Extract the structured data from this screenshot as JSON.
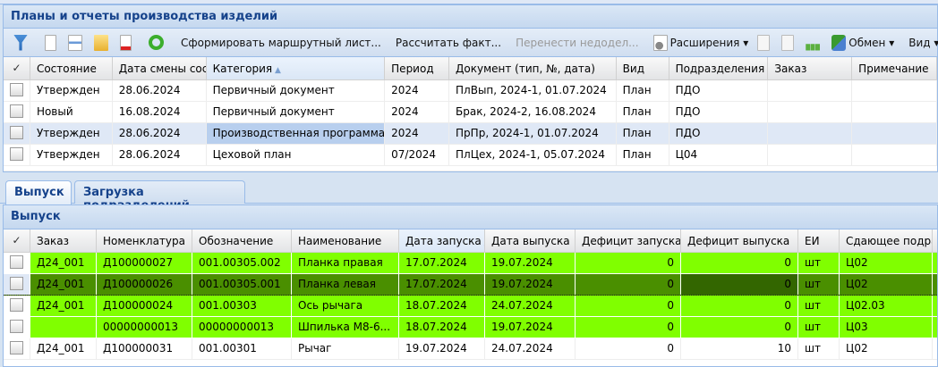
{
  "plans_panel": {
    "title": "Планы и отчеты производства изделий",
    "toolbar": {
      "icons": [
        "filter-icon",
        "new-document-icon",
        "edit-document-icon",
        "open-folder-icon",
        "delete-document-icon",
        "refresh-icon"
      ],
      "route_sheet": "Сформировать маршрутный лист...",
      "calc_fact": "Рассчитать факт...",
      "move_unfinished": "Перенести недодел...",
      "extensions": "Расширения",
      "exchange": "Обмен",
      "view": "Вид"
    },
    "columns": [
      "Состояние",
      "Дата смены состояния",
      "Категория",
      "Период",
      "Документ (тип, №, дата)",
      "Вид",
      "Подразделения",
      "Заказ",
      "Примечание"
    ],
    "rows": [
      [
        "Утвержден",
        "28.06.2024",
        "Первичный документ",
        "2024",
        "ПлВып, 2024-1, 01.07.2024",
        "План",
        "ПДО",
        "",
        ""
      ],
      [
        "Новый",
        "16.08.2024",
        "Первичный документ",
        "2024",
        "Брак, 2024-2, 16.08.2024",
        "План",
        "ПДО",
        "",
        ""
      ],
      [
        "Утвержден",
        "28.06.2024",
        "Производственная программа",
        "2024",
        "ПрПр, 2024-1, 01.07.2024",
        "План",
        "ПДО",
        "",
        ""
      ],
      [
        "Утвержден",
        "28.06.2024",
        "Цеховой план",
        "07/2024",
        "ПлЦех, 2024-1, 05.07.2024",
        "План",
        "Ц04",
        "",
        ""
      ]
    ]
  },
  "tabs": [
    "Выпуск",
    "Загрузка подразделений"
  ],
  "output_panel": {
    "title": "Выпуск",
    "columns": [
      "Заказ",
      "Номенклатура",
      "Обозначение",
      "Наименование",
      "Дата запуска",
      "Дата выпуска",
      "Дефицит запуска",
      "Дефицит выпуска",
      "ЕИ",
      "Сдающее подразделение"
    ],
    "rows": [
      [
        "Д24_001",
        "Д100000027",
        "001.00305.002",
        "Планка правая",
        "17.07.2024",
        "19.07.2024",
        "0",
        "0",
        "шт",
        "Ц02"
      ],
      [
        "Д24_001",
        "Д100000026",
        "001.00305.001",
        "Планка левая",
        "17.07.2024",
        "19.07.2024",
        "0",
        "0",
        "шт",
        "Ц02"
      ],
      [
        "Д24_001",
        "Д100000024",
        "001.00303",
        "Ось рычага",
        "18.07.2024",
        "24.07.2024",
        "0",
        "0",
        "шт",
        "Ц02.03"
      ],
      [
        "",
        "00000000013",
        "00000000013",
        "Шпилька М8-6...",
        "18.07.2024",
        "19.07.2024",
        "0",
        "0",
        "шт",
        "Ц03"
      ],
      [
        "Д24_001",
        "Д100000031",
        "001.00301",
        "Рычаг",
        "19.07.2024",
        "24.07.2024",
        "0",
        "10",
        "шт",
        "Ц02"
      ]
    ]
  },
  "colors": {
    "complete_row": "#80ff00",
    "selected_row": "#4a8f00",
    "selected_cell": "#336600",
    "header_text": "#15428b"
  }
}
